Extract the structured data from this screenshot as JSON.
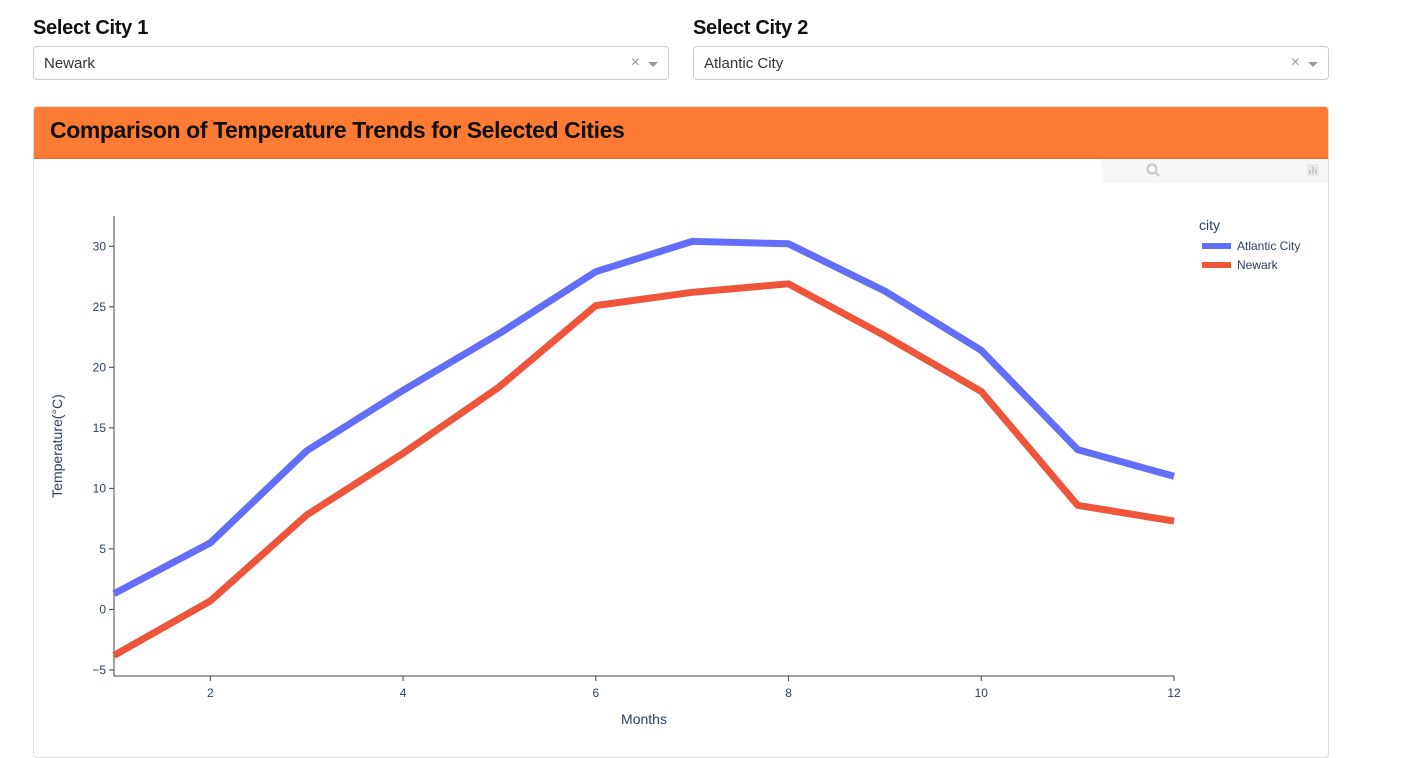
{
  "city1": {
    "label": "Select City 1",
    "value": "Newark",
    "clear": "×"
  },
  "city2": {
    "label": "Select City 2",
    "value": "Atlantic City",
    "clear": "×"
  },
  "card": {
    "title": "Comparison of Temperature Trends for Selected Cities",
    "header_color": "#fd7a35"
  },
  "modebar": {
    "icons": [
      "camera-icon",
      "zoom-icon",
      "pan-icon",
      "box-select-icon",
      "lasso-icon",
      "zoom-in-icon",
      "zoom-out-icon",
      "autoscale-icon",
      "reset-axes-icon",
      "plotly-logo-icon"
    ]
  },
  "chart_data": {
    "type": "line",
    "title": "",
    "xlabel": "Months",
    "ylabel": "Temperature(°C)",
    "x": [
      1,
      2,
      3,
      4,
      5,
      6,
      7,
      8,
      9,
      10,
      11,
      12
    ],
    "xlim": [
      1,
      12
    ],
    "ylim": [
      -5.5,
      32.5
    ],
    "xticks": [
      2,
      4,
      6,
      8,
      10,
      12
    ],
    "yticks": [
      -5,
      0,
      5,
      10,
      15,
      20,
      25,
      30
    ],
    "ytick_labels": [
      "−5",
      "0",
      "5",
      "10",
      "15",
      "20",
      "25",
      "30"
    ],
    "legend_title": "city",
    "legend_position": "top-right",
    "grid": false,
    "series": [
      {
        "name": "Atlantic City",
        "color": "#636efa",
        "values": [
          1.3,
          5.5,
          13.1,
          18.1,
          22.8,
          27.9,
          30.4,
          30.2,
          26.3,
          21.4,
          13.2,
          11.0
        ]
      },
      {
        "name": "Newark",
        "color": "#ef553b",
        "values": [
          -3.8,
          0.7,
          7.8,
          12.9,
          18.4,
          25.1,
          26.2,
          26.9,
          22.6,
          18.0,
          8.6,
          7.3
        ]
      }
    ]
  }
}
